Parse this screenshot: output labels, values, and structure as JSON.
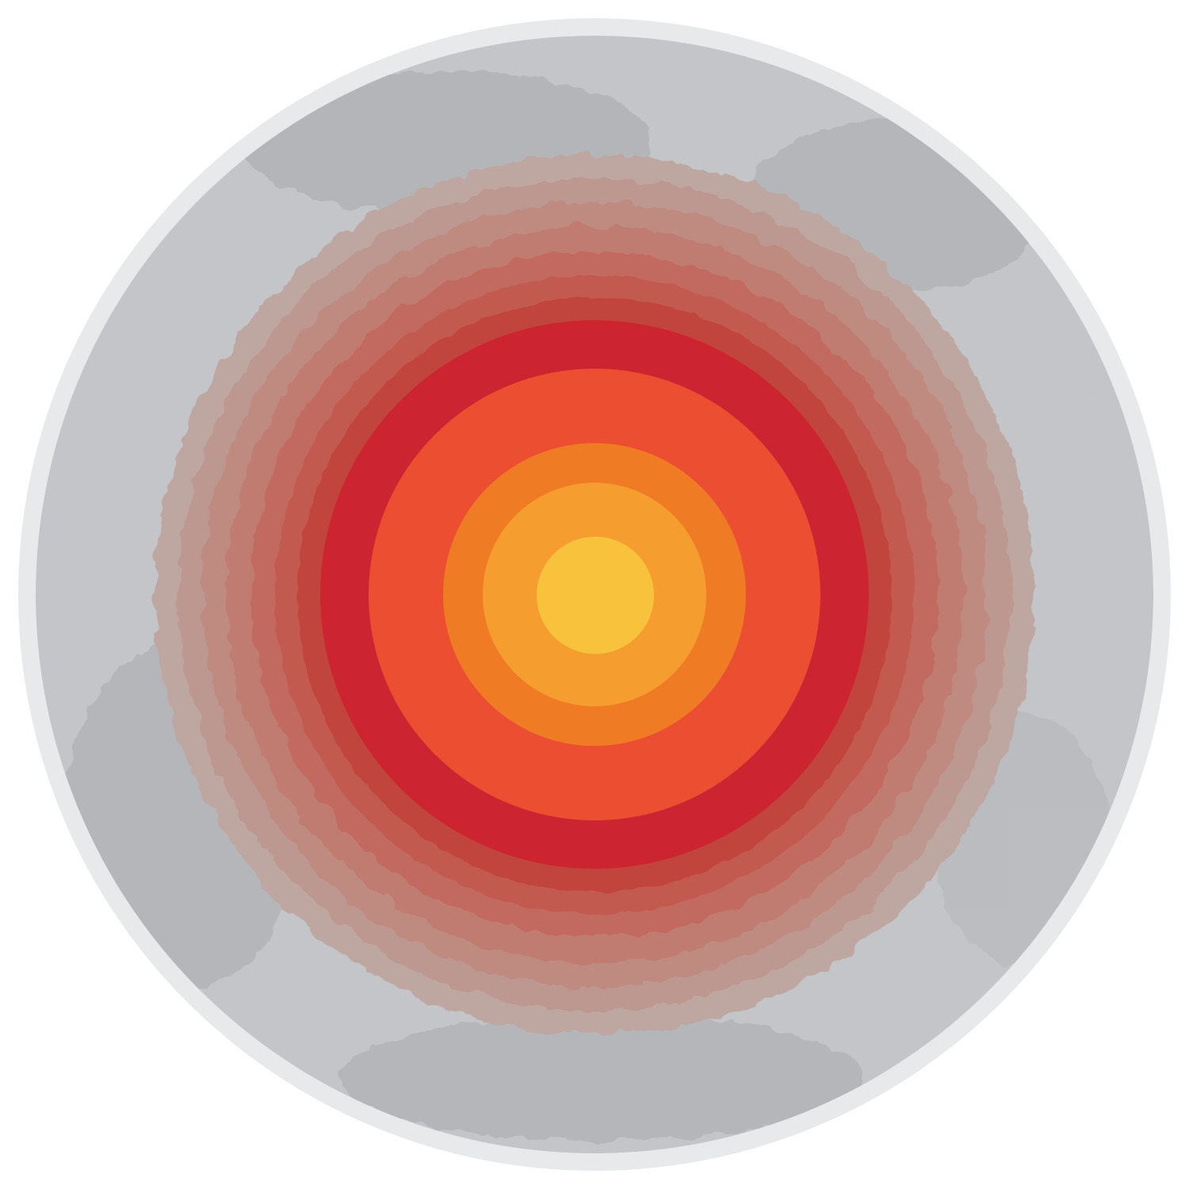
{
  "illustration": {
    "kind": "concentric-target",
    "texture": "grunge-stone",
    "colors": {
      "background": "#ffffff",
      "outer_ring": "#e8e9eb",
      "stone_base": "#c4c5c8",
      "stone_dark": "#9a9ca0",
      "stone_mid": "#b2b3b6",
      "stone_light": "#d3d4d6",
      "bullseye": "#f9c23c",
      "ring_1": "#f59e2f",
      "ring_2": "#f07b25",
      "ring_3": "#ec4e32",
      "ring_4": "#cc2430",
      "ring_5": "#c2453e",
      "ring_6": "#c35a4f",
      "ring_7": "#c26b5e",
      "ring_8": "#c07c6f",
      "ring_9": "#bf8b80",
      "ring_10": "#bd9890",
      "ring_11": "#bfa7a1"
    }
  }
}
